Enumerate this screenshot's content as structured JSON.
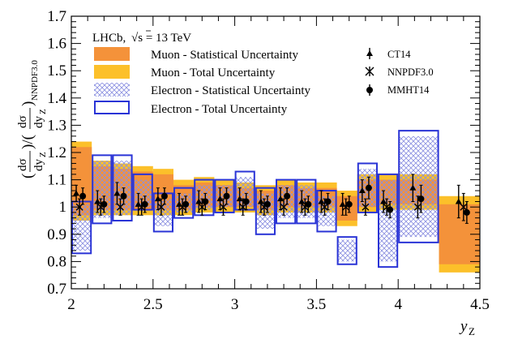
{
  "chart_data": {
    "type": "ratio-band-plot",
    "title": "LHCb, √s = 13 TeV",
    "title_parts": {
      "experiment": "LHCb,",
      "energy": "s = 13 TeV"
    },
    "xlabel": "yZ",
    "ylabel": "(dσ/dyZ)/(dσ/dyZ)NNPDF3.0",
    "xlim": [
      2.0,
      4.5
    ],
    "ylim": [
      0.7,
      1.7
    ],
    "x_ticks": [
      "2",
      "2.5",
      "3",
      "3.5",
      "4",
      "4.5"
    ],
    "y_ticks": [
      "0.7",
      "0.8",
      "0.9",
      "1",
      "1.1",
      "1.2",
      "1.3",
      "1.4",
      "1.5",
      "1.6",
      "1.7"
    ],
    "legend": {
      "muon_stat": "Muon - Statistical Uncertainty",
      "muon_total": "Muon - Total Uncertainty",
      "electron_stat": "Electron - Statistical Uncertainty",
      "electron_total": "Electron - Total Uncertainty",
      "ct14": "CT14",
      "nnpdf": "NNPDF3.0",
      "mmht": "MMHT14"
    },
    "colors": {
      "muon_stat": "#f4923a",
      "muon_total": "#fcc02a",
      "electron_hatch": "#8a8fe0",
      "electron_total": "#2a34d6"
    },
    "muon_bins": [
      2.0,
      2.125,
      2.25,
      2.375,
      2.5,
      2.625,
      2.75,
      2.875,
      3.0,
      3.125,
      3.25,
      3.375,
      3.5,
      3.625,
      3.75,
      3.875,
      4.0,
      4.25,
      4.5
    ],
    "muon_total": [
      [
        0.95,
        1.24
      ],
      [
        0.97,
        1.17
      ],
      [
        0.97,
        1.16
      ],
      [
        0.97,
        1.15
      ],
      [
        0.97,
        1.14
      ],
      [
        0.97,
        1.1
      ],
      [
        0.98,
        1.11
      ],
      [
        0.98,
        1.1
      ],
      [
        0.98,
        1.09
      ],
      [
        0.97,
        1.08
      ],
      [
        0.98,
        1.1
      ],
      [
        0.98,
        1.09
      ],
      [
        0.98,
        1.09
      ],
      [
        0.93,
        1.06
      ],
      [
        0.98,
        1.12
      ],
      [
        0.99,
        1.12
      ],
      [
        0.99,
        1.12
      ],
      [
        0.76,
        1.04
      ]
    ],
    "muon_stat": [
      [
        0.97,
        1.22
      ],
      [
        0.99,
        1.15
      ],
      [
        0.99,
        1.14
      ],
      [
        0.99,
        1.13
      ],
      [
        0.99,
        1.12
      ],
      [
        0.99,
        1.08
      ],
      [
        1.0,
        1.09
      ],
      [
        1.0,
        1.08
      ],
      [
        1.0,
        1.07
      ],
      [
        0.99,
        1.06
      ],
      [
        1.0,
        1.08
      ],
      [
        1.0,
        1.07
      ],
      [
        1.0,
        1.07
      ],
      [
        0.95,
        1.04
      ],
      [
        1.0,
        1.1
      ],
      [
        1.01,
        1.1
      ],
      [
        1.01,
        1.1
      ],
      [
        0.79,
        1.01
      ]
    ],
    "electron_bins": [
      2.0,
      2.125,
      2.25,
      2.375,
      2.5,
      2.625,
      2.75,
      2.875,
      3.0,
      3.125,
      3.25,
      3.375,
      3.5,
      3.625,
      3.75,
      3.875,
      4.0,
      4.25
    ],
    "electron_total": [
      [
        0.83,
        1.02
      ],
      [
        0.94,
        1.19
      ],
      [
        0.95,
        1.19
      ],
      [
        0.99,
        1.12
      ],
      [
        0.91,
        1.05
      ],
      [
        0.96,
        1.07
      ],
      [
        0.97,
        1.1
      ],
      [
        0.98,
        1.1
      ],
      [
        0.99,
        1.13
      ],
      [
        0.9,
        1.07
      ],
      [
        0.94,
        1.1
      ],
      [
        0.94,
        1.1
      ],
      [
        0.91,
        1.06
      ],
      [
        0.79,
        0.89
      ],
      [
        0.98,
        1.16
      ],
      [
        0.78,
        1.12
      ],
      [
        0.87,
        1.28
      ]
    ],
    "electron_stat": [
      [
        0.84,
        1.01
      ],
      [
        0.96,
        1.17
      ],
      [
        0.97,
        1.17
      ],
      [
        1.0,
        1.1
      ],
      [
        0.93,
        1.03
      ],
      [
        0.98,
        1.05
      ],
      [
        0.99,
        1.08
      ],
      [
        1.0,
        1.08
      ],
      [
        1.0,
        1.11
      ],
      [
        0.92,
        1.05
      ],
      [
        0.96,
        1.08
      ],
      [
        0.96,
        1.08
      ],
      [
        0.93,
        1.04
      ],
      [
        0.8,
        0.88
      ],
      [
        1.0,
        1.14
      ],
      [
        0.8,
        1.1
      ],
      [
        0.89,
        1.26
      ]
    ],
    "ct14": [
      {
        "x": 2.03,
        "y": 1.05,
        "err": 0.03
      },
      {
        "x": 2.16,
        "y": 1.02,
        "err": 0.04
      },
      {
        "x": 2.28,
        "y": 1.05,
        "err": 0.04
      },
      {
        "x": 2.41,
        "y": 1.01,
        "err": 0.04
      },
      {
        "x": 2.53,
        "y": 1.03,
        "err": 0.04
      },
      {
        "x": 2.66,
        "y": 1.01,
        "err": 0.04
      },
      {
        "x": 2.78,
        "y": 1.02,
        "err": 0.04
      },
      {
        "x": 2.91,
        "y": 1.03,
        "err": 0.04
      },
      {
        "x": 3.03,
        "y": 1.03,
        "err": 0.04
      },
      {
        "x": 3.16,
        "y": 1.02,
        "err": 0.04
      },
      {
        "x": 3.28,
        "y": 1.03,
        "err": 0.04
      },
      {
        "x": 3.41,
        "y": 1.02,
        "err": 0.04
      },
      {
        "x": 3.53,
        "y": 1.02,
        "err": 0.04
      },
      {
        "x": 3.66,
        "y": 1.01,
        "err": 0.04
      },
      {
        "x": 3.78,
        "y": 1.06,
        "err": 0.04
      },
      {
        "x": 3.91,
        "y": 1.02,
        "err": 0.04
      },
      {
        "x": 4.09,
        "y": 1.07,
        "err": 0.05
      },
      {
        "x": 4.37,
        "y": 1.02,
        "err": 0.06
      }
    ],
    "nnpdf": [
      {
        "x": 2.05,
        "y": 1.0,
        "err": 0.03
      },
      {
        "x": 2.18,
        "y": 1.0,
        "err": 0.03
      },
      {
        "x": 2.3,
        "y": 1.0,
        "err": 0.03
      },
      {
        "x": 2.43,
        "y": 1.0,
        "err": 0.03
      },
      {
        "x": 2.55,
        "y": 1.0,
        "err": 0.03
      },
      {
        "x": 2.68,
        "y": 1.0,
        "err": 0.03
      },
      {
        "x": 2.8,
        "y": 1.0,
        "err": 0.03
      },
      {
        "x": 2.93,
        "y": 1.0,
        "err": 0.03
      },
      {
        "x": 3.05,
        "y": 1.0,
        "err": 0.03
      },
      {
        "x": 3.18,
        "y": 1.0,
        "err": 0.03
      },
      {
        "x": 3.3,
        "y": 1.0,
        "err": 0.03
      },
      {
        "x": 3.43,
        "y": 1.0,
        "err": 0.03
      },
      {
        "x": 3.55,
        "y": 1.0,
        "err": 0.03
      },
      {
        "x": 3.68,
        "y": 1.0,
        "err": 0.03
      },
      {
        "x": 3.8,
        "y": 1.0,
        "err": 0.03
      },
      {
        "x": 3.93,
        "y": 1.0,
        "err": 0.03
      },
      {
        "x": 4.12,
        "y": 1.0,
        "err": 0.04
      },
      {
        "x": 4.4,
        "y": 1.0,
        "err": 0.05
      }
    ],
    "mmht": [
      {
        "x": 2.07,
        "y": 1.04,
        "err": 0.03
      },
      {
        "x": 2.2,
        "y": 1.01,
        "err": 0.03
      },
      {
        "x": 2.32,
        "y": 1.04,
        "err": 0.03
      },
      {
        "x": 2.45,
        "y": 1.01,
        "err": 0.03
      },
      {
        "x": 2.57,
        "y": 1.04,
        "err": 0.03
      },
      {
        "x": 2.7,
        "y": 1.01,
        "err": 0.03
      },
      {
        "x": 2.82,
        "y": 1.02,
        "err": 0.03
      },
      {
        "x": 2.95,
        "y": 1.04,
        "err": 0.03
      },
      {
        "x": 3.07,
        "y": 1.02,
        "err": 0.03
      },
      {
        "x": 3.2,
        "y": 1.01,
        "err": 0.03
      },
      {
        "x": 3.32,
        "y": 1.04,
        "err": 0.03
      },
      {
        "x": 3.45,
        "y": 1.01,
        "err": 0.03
      },
      {
        "x": 3.57,
        "y": 1.02,
        "err": 0.03
      },
      {
        "x": 3.7,
        "y": 1.01,
        "err": 0.03
      },
      {
        "x": 3.82,
        "y": 1.07,
        "err": 0.04
      },
      {
        "x": 3.95,
        "y": 0.99,
        "err": 0.03
      },
      {
        "x": 4.14,
        "y": 1.03,
        "err": 0.05
      },
      {
        "x": 4.42,
        "y": 0.98,
        "err": 0.04
      }
    ]
  }
}
